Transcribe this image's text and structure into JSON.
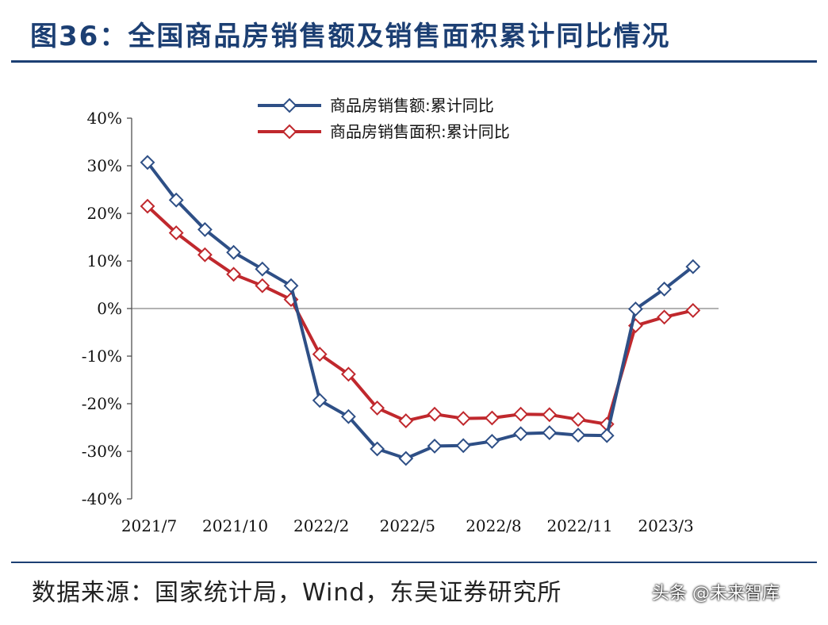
{
  "title": "图36：全国商品房销售额及销售面积累计同比情况",
  "source": "数据来源：国家统计局，Wind，东吴证券研究所",
  "watermark": "头条 @未来智库",
  "chart_data": {
    "type": "line",
    "title": "",
    "xlabel": "",
    "ylabel": "",
    "ylim": [
      -40,
      40
    ],
    "yticks": [
      "40%",
      "30%",
      "20%",
      "10%",
      "0%",
      "-10%",
      "-20%",
      "-30%",
      "-40%"
    ],
    "ytick_values": [
      40,
      30,
      20,
      10,
      0,
      -10,
      -20,
      -30,
      -40
    ],
    "x": [
      "2021/7",
      "2021/8",
      "2021/9",
      "2021/10",
      "2021/11",
      "2021/12",
      "2022/2",
      "2022/3",
      "2022/4",
      "2022/5",
      "2022/6",
      "2022/7",
      "2022/8",
      "2022/9",
      "2022/10",
      "2022/11",
      "2022/12",
      "2023/2",
      "2023/3",
      "2023/4"
    ],
    "xtick_labels": [
      "2021/7",
      "2021/10",
      "2022/2",
      "2022/5",
      "2022/8",
      "2022/11",
      "2023/3"
    ],
    "xtick_index": [
      0,
      3,
      6,
      9,
      12,
      15,
      18
    ],
    "legend_position": "top-center",
    "grid": false,
    "series": [
      {
        "name": "商品房销售额:累计同比",
        "color": "#2e4f86",
        "values": [
          30.7,
          22.8,
          16.6,
          11.8,
          8.3,
          4.8,
          -19.3,
          -22.7,
          -29.5,
          -31.5,
          -28.9,
          -28.8,
          -27.9,
          -26.3,
          -26.1,
          -26.6,
          -26.7,
          -0.1,
          4.1,
          8.8
        ]
      },
      {
        "name": "商品房销售面积:累计同比",
        "color": "#c0282d",
        "values": [
          21.5,
          15.9,
          11.3,
          7.2,
          4.8,
          1.9,
          -9.6,
          -13.8,
          -20.9,
          -23.6,
          -22.2,
          -23.1,
          -23.0,
          -22.2,
          -22.3,
          -23.3,
          -24.3,
          -3.6,
          -1.8,
          -0.4
        ]
      }
    ]
  }
}
